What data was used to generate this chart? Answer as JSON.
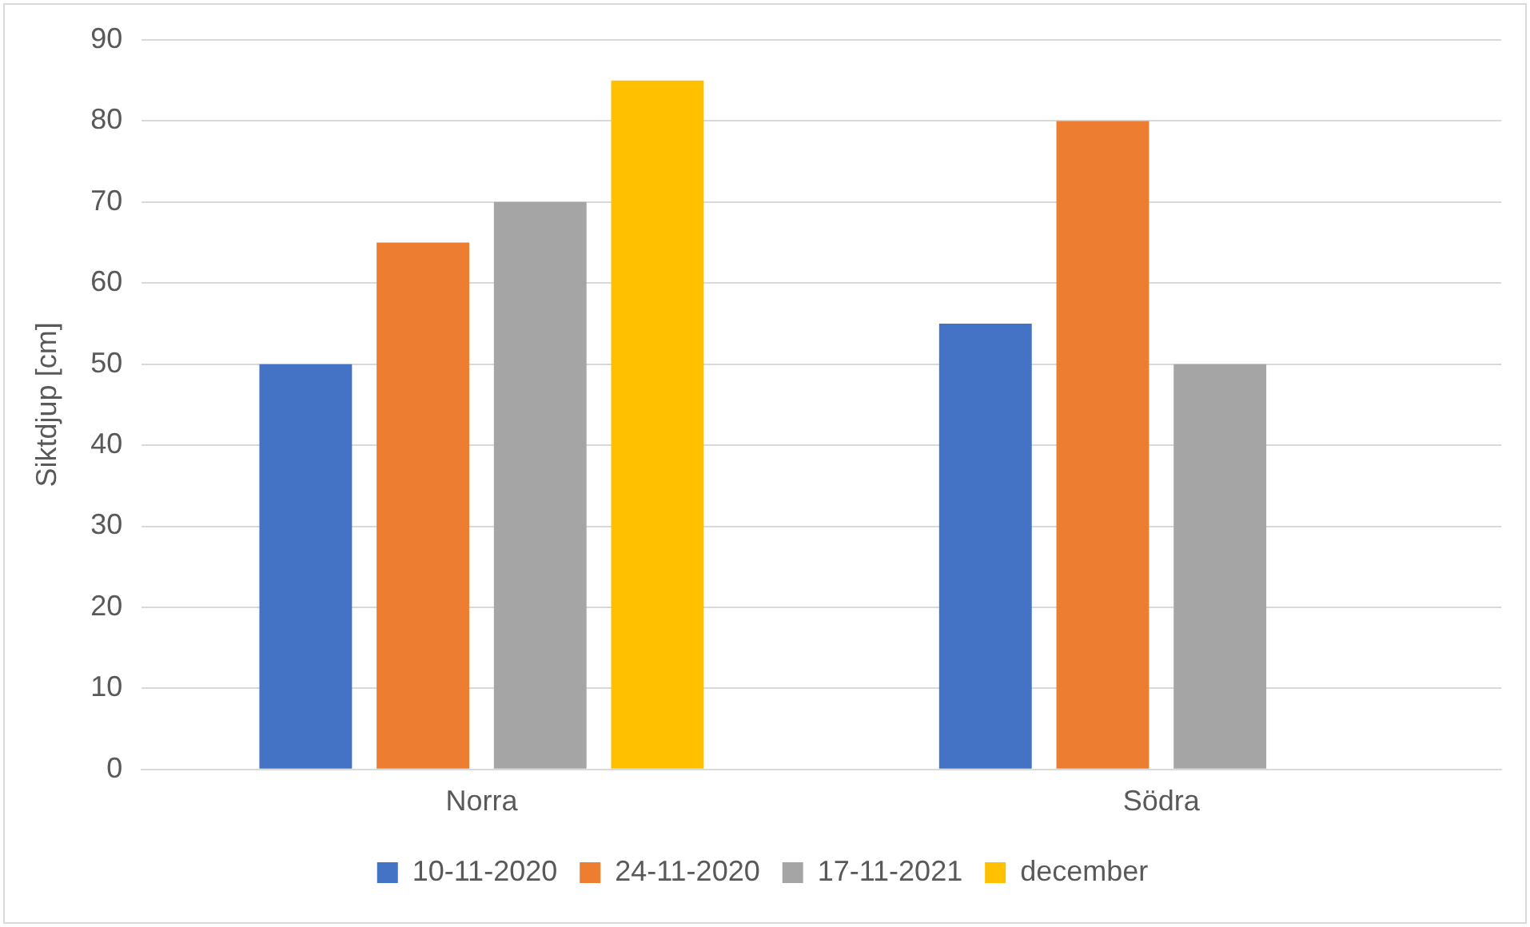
{
  "chart_data": {
    "type": "bar",
    "ylabel": "Siktdjup [cm]",
    "categories": [
      "Norra",
      "Södra"
    ],
    "series": [
      {
        "name": "10-11-2020",
        "color": "#4472c4",
        "values": [
          50,
          55
        ]
      },
      {
        "name": "24-11-2020",
        "color": "#ed7d31",
        "values": [
          65,
          80
        ]
      },
      {
        "name": "17-11-2021",
        "color": "#a5a5a5",
        "values": [
          70,
          50
        ]
      },
      {
        "name": "december",
        "color": "#ffc000",
        "values": [
          85,
          null
        ]
      }
    ],
    "ylim": [
      0,
      90
    ],
    "yticks": [
      0,
      10,
      20,
      30,
      40,
      50,
      60,
      70,
      80,
      90
    ],
    "grid": "y",
    "legend": "bottom"
  }
}
